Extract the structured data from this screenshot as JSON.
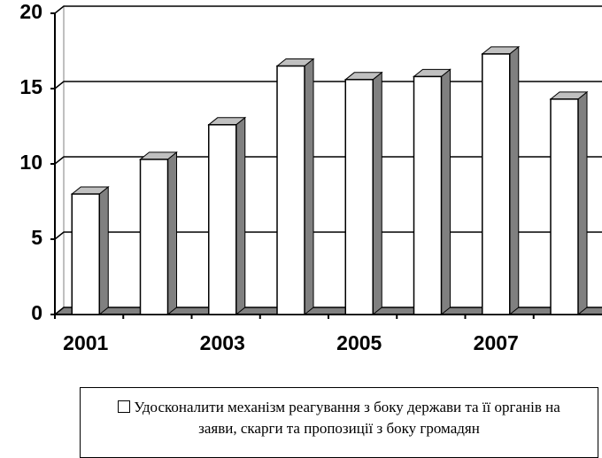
{
  "chart_data": {
    "type": "bar3d",
    "categories": [
      "2001",
      null,
      "2003",
      null,
      "2005",
      null,
      "2007",
      null
    ],
    "series": [
      {
        "name": "Удосконалити механізм реагування з боку держави та її органів на заяви, скарги та пропозиції з боку громадян",
        "color": "#ffffff",
        "values": [
          8,
          10.3,
          12.6,
          16.5,
          15.6,
          15.8,
          17.3,
          14.3
        ]
      }
    ],
    "ylim": [
      0,
      20
    ],
    "yticks": [
      0,
      5,
      10,
      15,
      20
    ],
    "grid": true
  }
}
